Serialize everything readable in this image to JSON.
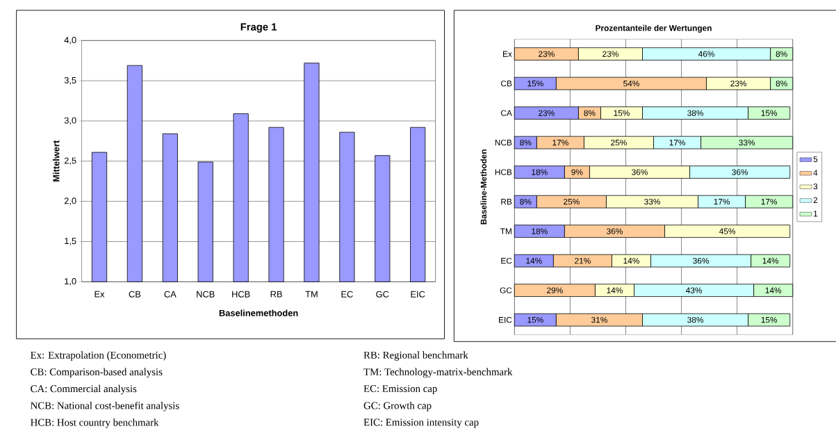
{
  "chart_data": [
    {
      "type": "bar",
      "title": "Frage 1",
      "xlabel": "Baselinemethoden",
      "ylabel": "Mittelwert",
      "categories": [
        "Ex",
        "CB",
        "CA",
        "NCB",
        "HCB",
        "RB",
        "TM",
        "EC",
        "GC",
        "EIC"
      ],
      "values": [
        2.61,
        3.69,
        2.84,
        2.49,
        3.09,
        2.92,
        3.72,
        2.86,
        2.57,
        2.92
      ],
      "color": "#9999ff",
      "ylim": [
        1.0,
        4.0
      ],
      "yticks": [
        {
          "value": 1.0,
          "label": "1,0"
        },
        {
          "value": 1.5,
          "label": "1,5"
        },
        {
          "value": 2.0,
          "label": "2,0"
        },
        {
          "value": 2.5,
          "label": "2,5"
        },
        {
          "value": 3.0,
          "label": "3,0"
        },
        {
          "value": 3.5,
          "label": "3,5"
        },
        {
          "value": 4.0,
          "label": "4,0"
        }
      ],
      "grid": "y"
    },
    {
      "type": "bar",
      "orientation": "horizontal",
      "stacked": true,
      "title": "Prozentanteile der Wertungen",
      "ylabel": "Baseline-Methoden",
      "categories": [
        "Ex",
        "CB",
        "CA",
        "NCB",
        "HCB",
        "RB",
        "TM",
        "EC",
        "GC",
        "EIC"
      ],
      "series": [
        {
          "name": "5",
          "color": "#9999ff",
          "values": [
            null,
            15,
            23,
            8,
            18,
            8,
            18,
            14,
            null,
            15
          ],
          "value_labels": [
            null,
            "15%",
            "23%",
            "8%",
            "18%",
            "8%",
            "18%",
            "14%",
            null,
            "15%"
          ]
        },
        {
          "name": "4",
          "color": "#ffcc99",
          "values": [
            23,
            54,
            8,
            17,
            9,
            25,
            36,
            21,
            29,
            31
          ],
          "value_labels": [
            "23%",
            "54%",
            "8%",
            "17%",
            "9%",
            "25%",
            "36%",
            "21%",
            "29%",
            "31%"
          ]
        },
        {
          "name": "3",
          "color": "#ffffcc",
          "values": [
            23,
            23,
            15,
            25,
            36,
            33,
            45,
            14,
            14,
            null
          ],
          "value_labels": [
            "23%",
            "23%",
            "15%",
            "25%",
            "36%",
            "33%",
            "45%",
            "14%",
            "14%",
            null
          ]
        },
        {
          "name": "2",
          "color": "#ccffff",
          "values": [
            46,
            null,
            38,
            17,
            36,
            17,
            null,
            36,
            43,
            38
          ],
          "value_labels": [
            "46%",
            null,
            "38%",
            "17%",
            "36%",
            "17%",
            null,
            "36%",
            "43%",
            "38%"
          ]
        },
        {
          "name": "1",
          "color": "#ccffcc",
          "values": [
            8,
            8,
            15,
            33,
            null,
            17,
            null,
            14,
            14,
            15
          ],
          "value_labels": [
            "8%",
            "8%",
            "15%",
            "33%",
            null,
            "17%",
            null,
            "14%",
            "14%",
            "15%"
          ]
        }
      ],
      "xlim": [
        0,
        100
      ],
      "xticks": [
        {
          "value": 0,
          "label": null
        },
        {
          "value": 20,
          "label": null
        },
        {
          "value": 40,
          "label": null
        },
        {
          "value": 60,
          "label": null
        },
        {
          "value": 80,
          "label": null
        },
        {
          "value": 100,
          "label": null
        }
      ],
      "tick_labels": "y",
      "grid": "x",
      "legend": "right"
    },
    {
      "type": "other",
      "annotations": [
        "Ex: Extrapolation (Econometric)",
        "CB: Comparison-based analysis",
        "CA: Commercial analysis",
        "NCB: National cost-benefit analysis",
        "HCB: Host country benchmark",
        "RB: Regional benchmark",
        "TM: Technology-matrix-benchmark",
        "EC: Emission cap",
        "GC: Growth cap",
        "EIC: Emission intensity cap"
      ]
    }
  ]
}
